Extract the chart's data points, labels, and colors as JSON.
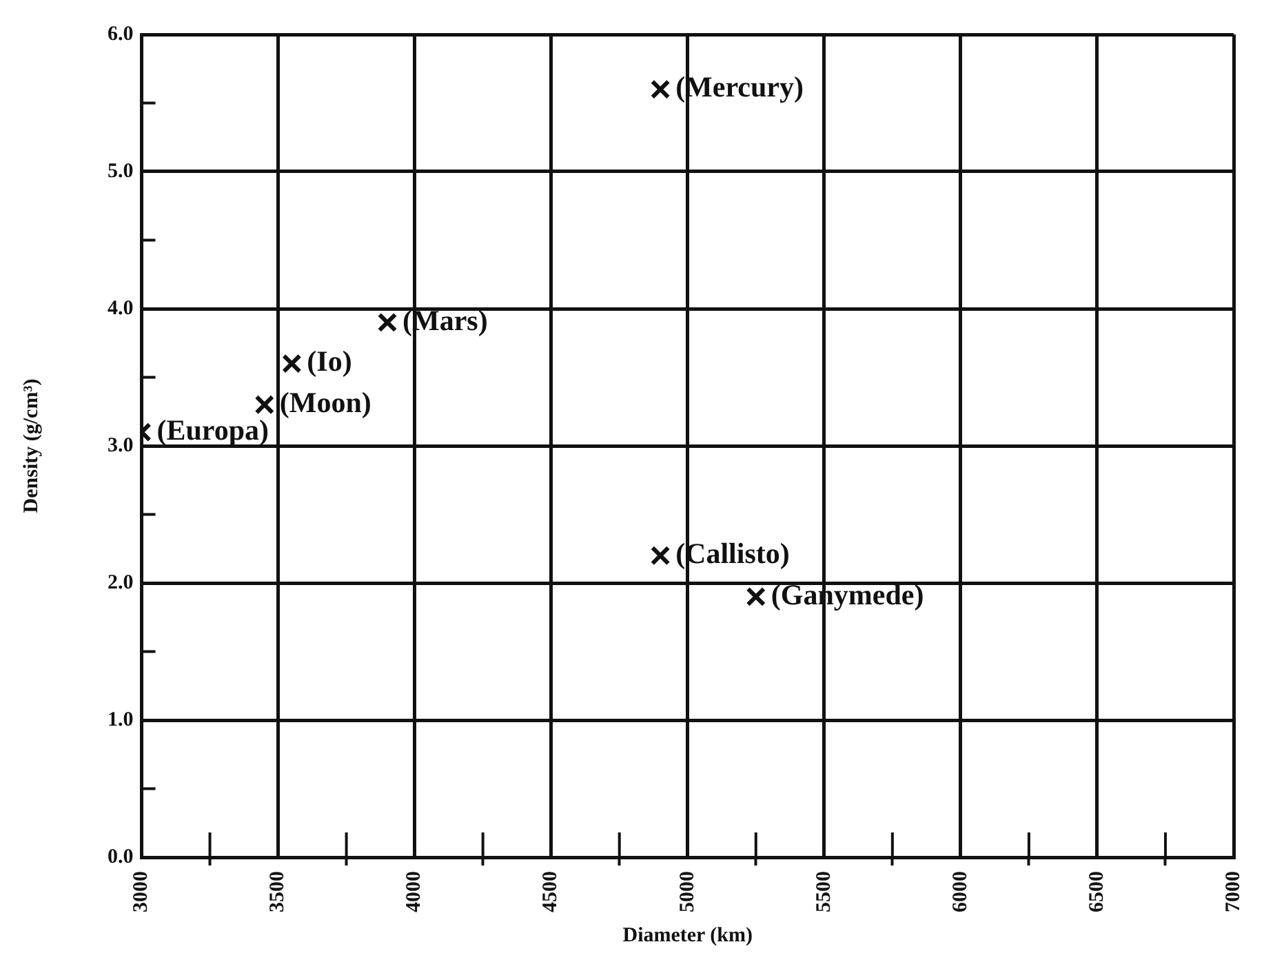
{
  "chart_data": {
    "type": "scatter",
    "xlabel": "Diameter (km)",
    "ylabel": "Density (g/cm³)",
    "x": [
      4900,
      3900,
      3550,
      3450,
      3000,
      4900,
      5250
    ],
    "values": [
      5.6,
      3.9,
      3.6,
      3.3,
      3.1,
      2.2,
      1.9
    ],
    "color": "#111111",
    "marker": "cross",
    "grid": true,
    "xlim": [
      3000,
      7000
    ],
    "xticks": [
      3000,
      {
        "value": 3250,
        "label": null
      },
      3500,
      {
        "value": 3750,
        "label": null
      },
      4000,
      {
        "value": 4250,
        "label": null
      },
      4500,
      {
        "value": 4750,
        "label": null
      },
      5000,
      {
        "value": 5250,
        "label": null
      },
      5500,
      {
        "value": 5750,
        "label": null
      },
      6000,
      {
        "value": 6250,
        "label": null
      },
      6500,
      {
        "value": 6750,
        "label": null
      },
      7000
    ],
    "ylim": [
      0,
      6
    ],
    "yticks": [
      {
        "value": 0,
        "label": "0.0"
      },
      {
        "value": 0.5,
        "label": null
      },
      {
        "value": 1,
        "label": "1.0"
      },
      {
        "value": 1.5,
        "label": null
      },
      {
        "value": 2,
        "label": "2.0"
      },
      {
        "value": 2.5,
        "label": null
      },
      {
        "value": 3,
        "label": "3.0"
      },
      {
        "value": 3.5,
        "label": null
      },
      {
        "value": 4,
        "label": "4.0"
      },
      {
        "value": 4.5,
        "label": null
      },
      {
        "value": 5,
        "label": "5.0"
      },
      {
        "value": 5.5,
        "label": null
      },
      {
        "value": 6,
        "label": "6.0"
      }
    ],
    "annotations": [
      {
        "text": "(Mercury)",
        "x": 4900,
        "y": 5.6
      },
      {
        "text": "(Mars)",
        "x": 3900,
        "y": 3.9
      },
      {
        "text": "(Io)",
        "x": 3550,
        "y": 3.6
      },
      {
        "text": "(Moon)",
        "x": 3450,
        "y": 3.3
      },
      {
        "text": "(Europa)",
        "x": 3000,
        "y": 3.1
      },
      {
        "text": "(Callisto)",
        "x": 4900,
        "y": 2.2
      },
      {
        "text": "(Ganymede)",
        "x": 5250,
        "y": 1.9
      }
    ]
  }
}
